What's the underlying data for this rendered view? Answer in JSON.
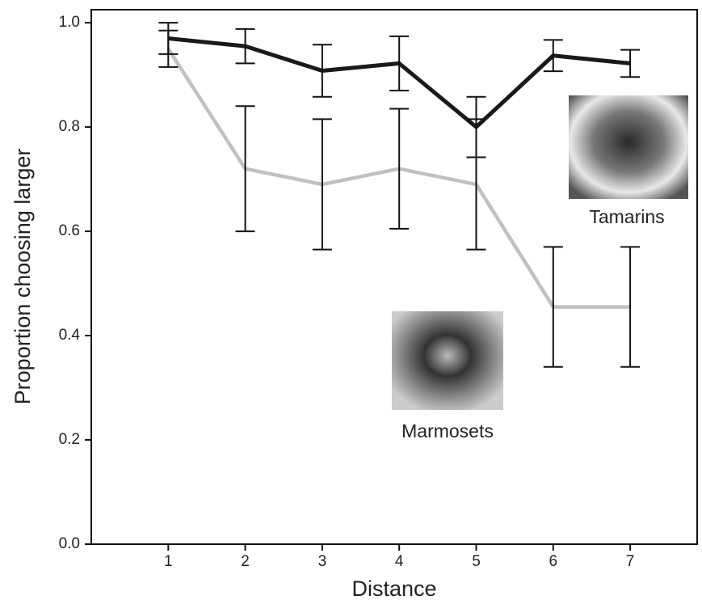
{
  "chart_data": {
    "type": "line",
    "x_label": "Distance",
    "y_label": "Proportion choosing larger",
    "x": [
      1,
      2,
      3,
      4,
      5,
      6,
      7
    ],
    "series": [
      {
        "name": "Tamarins",
        "color": "#1a1a1a",
        "values": [
          0.97,
          0.955,
          0.908,
          0.922,
          0.8,
          0.937,
          0.922
        ],
        "errors": [
          0.03,
          0.033,
          0.05,
          0.052,
          0.058,
          0.03,
          0.026
        ]
      },
      {
        "name": "Marmosets",
        "color": "#c0c0c0",
        "values": [
          0.95,
          0.72,
          0.69,
          0.72,
          0.69,
          0.455,
          0.455
        ],
        "errors": [
          0.035,
          0.12,
          0.125,
          0.115,
          0.125,
          0.115,
          0.115
        ]
      }
    ],
    "xlim": [
      0,
      7.87
    ],
    "ylim": [
      0,
      1.025
    ],
    "xticks": [
      1,
      2,
      3,
      4,
      5,
      6,
      7
    ],
    "yticks": [
      {
        "value": 0,
        "label": "0.0"
      },
      0.2,
      0.4,
      0.6,
      0.8,
      {
        "value": 1,
        "label": "1.0"
      }
    ],
    "grid": false
  }
}
